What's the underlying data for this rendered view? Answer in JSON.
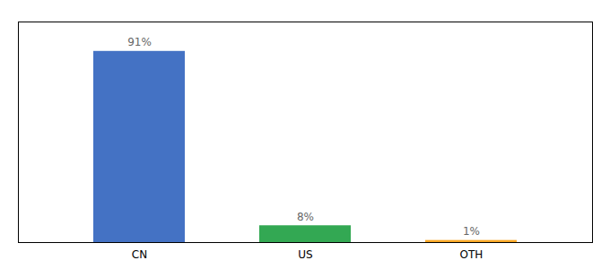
{
  "chart_data": {
    "type": "bar",
    "categories": [
      "CN",
      "US",
      "OTH"
    ],
    "values": [
      91,
      8,
      1
    ],
    "value_labels": [
      "91%",
      "8%",
      "1%"
    ],
    "colors": [
      "#4472c4",
      "#33a853",
      "#f9a825"
    ],
    "ylim": [
      0,
      105
    ],
    "yticks": [],
    "tick_labels": "x",
    "data_labels": true,
    "grid": false
  }
}
